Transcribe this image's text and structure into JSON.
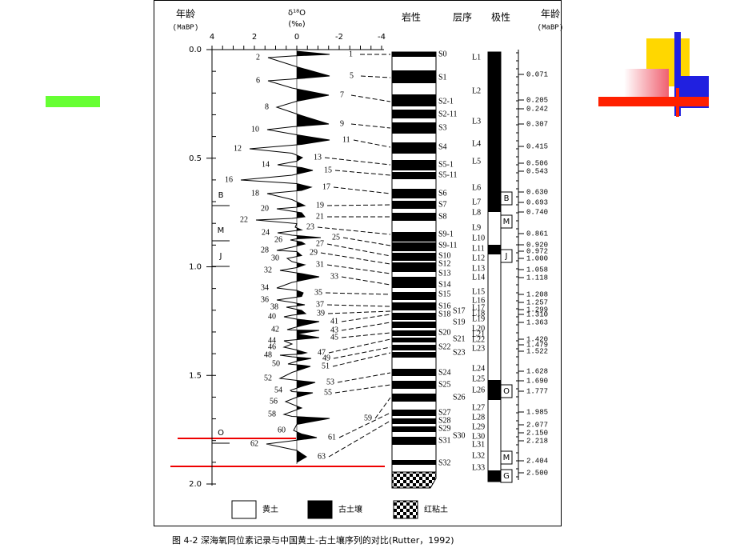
{
  "figure": {
    "age_axis": {
      "title": "年龄",
      "unit": "(MaBP)",
      "ticks": [
        "0.0",
        "0.5",
        "1.0",
        "1.5",
        "2.0"
      ]
    },
    "delta_axis": {
      "label": "δ¹⁸O",
      "unit": "(‰)",
      "ticks": [
        4,
        2,
        0,
        -2,
        -4
      ]
    },
    "columns": {
      "lithology": "岩性",
      "sequence": "层序",
      "polarity": "极性",
      "age_title": "年龄",
      "age_unit": "(MaBP)"
    },
    "stages_even": [
      2,
      6,
      8,
      10,
      12,
      14,
      16,
      18,
      20,
      22,
      24,
      26,
      28,
      30,
      32,
      34,
      36,
      38,
      40,
      42,
      44,
      46,
      48,
      50,
      52,
      54,
      56,
      58,
      60,
      62
    ],
    "stages_odd": [
      1,
      5,
      7,
      9,
      11,
      13,
      15,
      17,
      19,
      21,
      23,
      25,
      27,
      29,
      31,
      33,
      35,
      37,
      39,
      41,
      43,
      45,
      47,
      49,
      51,
      53,
      55,
      59,
      61,
      63
    ],
    "soils": [
      "S0",
      "S1",
      "S2-1",
      "S2-11",
      "S3",
      "S4",
      "S5-1",
      "S5-11",
      "S6",
      "S7",
      "S8",
      "S9-1",
      "S9-11",
      "S10",
      "S12",
      "S13",
      "S14",
      "S15",
      "S16",
      "S17",
      "S18",
      "S19",
      "S20",
      "S21",
      "S22",
      "S23",
      "S24",
      "S25",
      "S26",
      "S27",
      "S28",
      "S29",
      "S30",
      "S31",
      "S32"
    ],
    "loess": [
      "L1",
      "L2",
      "L3",
      "L4",
      "L5",
      "L6",
      "L7",
      "L8",
      "L9",
      "L10",
      "L11",
      "L12",
      "L13",
      "L14",
      "L15",
      "L16",
      "L17",
      "L18",
      "L19",
      "L20",
      "L21",
      "L22",
      "L23",
      "L24",
      "L25",
      "L26",
      "L27",
      "L28",
      "L29",
      "L30",
      "L31",
      "L32",
      "L33"
    ],
    "ages": [
      "0.071",
      "0.205",
      "0.242",
      "0.307",
      "0.415",
      "0.506",
      "0.543",
      "0.630",
      "0.693",
      "0.740",
      "0.861",
      "0.920",
      "0.972",
      "1.000",
      "1.058",
      "1.118",
      "1.208",
      "1.257",
      "1.299",
      "1.310",
      "1.363",
      "1.420",
      "1.479",
      "1.522",
      "1.628",
      "1.690",
      "1.777",
      "1.985",
      "2.077",
      "2.150",
      "2.218",
      "2.404",
      "2.500"
    ],
    "polarity_left": [
      "B",
      "M",
      "J",
      "O"
    ],
    "polarity_right": [
      "B",
      "M",
      "J",
      "O",
      "M",
      "G"
    ],
    "legend": [
      "黄土",
      "古土壤",
      "红粘土"
    ],
    "caption": "图 4-2  深海氧同位素记录与中国黄土-古土壤序列的对比(Rutter，1992)"
  }
}
